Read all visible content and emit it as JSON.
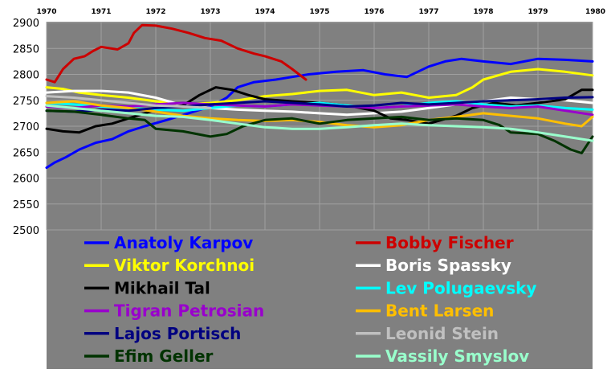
{
  "chart_data": {
    "type": "line",
    "title": "",
    "xlabel": "",
    "ylabel": "",
    "x_ticks": [
      "1970",
      "1971",
      "1972",
      "1973",
      "1974",
      "1975",
      "1976",
      "1977",
      "1978",
      "1979",
      "1980"
    ],
    "y_ticks": [
      "2900",
      "2850",
      "2800",
      "2750",
      "2700",
      "2650",
      "2600",
      "2550",
      "2500"
    ],
    "xlim": [
      1970,
      1980
    ],
    "ylim": [
      2500,
      2900
    ],
    "grid": true,
    "legend_position": "bottom",
    "colors": {
      "background": "#808080",
      "grid": "#a0a0a0"
    },
    "series": [
      {
        "name": "Anatoly Karpov",
        "color": "#0000ff",
        "label_color": "#0000ff",
        "points": [
          [
            1970.0,
            2620
          ],
          [
            1970.15,
            2630
          ],
          [
            1970.35,
            2640
          ],
          [
            1970.6,
            2655
          ],
          [
            1970.9,
            2668
          ],
          [
            1971.2,
            2675
          ],
          [
            1971.5,
            2690
          ],
          [
            1971.8,
            2700
          ],
          [
            1972.2,
            2712
          ],
          [
            1972.6,
            2725
          ],
          [
            1973.0,
            2738
          ],
          [
            1973.3,
            2755
          ],
          [
            1973.5,
            2775
          ],
          [
            1973.8,
            2785
          ],
          [
            1974.2,
            2790
          ],
          [
            1974.5,
            2795
          ],
          [
            1974.8,
            2800
          ],
          [
            1975.3,
            2805
          ],
          [
            1975.8,
            2808
          ],
          [
            1976.2,
            2800
          ],
          [
            1976.6,
            2795
          ],
          [
            1977.0,
            2815
          ],
          [
            1977.3,
            2825
          ],
          [
            1977.6,
            2830
          ],
          [
            1978.0,
            2825
          ],
          [
            1978.5,
            2820
          ],
          [
            1979.0,
            2830
          ],
          [
            1979.5,
            2828
          ],
          [
            1980.0,
            2825
          ]
        ]
      },
      {
        "name": "Bobby Fischer",
        "color": "#cc0000",
        "label_color": "#cc0000",
        "points": [
          [
            1970.0,
            2790
          ],
          [
            1970.15,
            2785
          ],
          [
            1970.3,
            2810
          ],
          [
            1970.5,
            2830
          ],
          [
            1970.7,
            2835
          ],
          [
            1970.85,
            2845
          ],
          [
            1971.0,
            2853
          ],
          [
            1971.3,
            2848
          ],
          [
            1971.5,
            2860
          ],
          [
            1971.6,
            2880
          ],
          [
            1971.75,
            2895
          ],
          [
            1972.0,
            2894
          ],
          [
            1972.3,
            2888
          ],
          [
            1972.6,
            2880
          ],
          [
            1972.9,
            2870
          ],
          [
            1973.2,
            2865
          ],
          [
            1973.5,
            2850
          ],
          [
            1973.8,
            2840
          ],
          [
            1974.0,
            2835
          ],
          [
            1974.3,
            2825
          ],
          [
            1974.5,
            2810
          ],
          [
            1974.75,
            2790
          ]
        ]
      },
      {
        "name": "Viktor Korchnoi",
        "color": "#ffff00",
        "label_color": "#ffff00",
        "points": [
          [
            1970.0,
            2775
          ],
          [
            1970.3,
            2772
          ],
          [
            1970.6,
            2765
          ],
          [
            1971.0,
            2760
          ],
          [
            1971.5,
            2755
          ],
          [
            1972.0,
            2748
          ],
          [
            1972.5,
            2742
          ],
          [
            1973.0,
            2745
          ],
          [
            1973.5,
            2750
          ],
          [
            1974.0,
            2758
          ],
          [
            1974.5,
            2762
          ],
          [
            1975.0,
            2768
          ],
          [
            1975.5,
            2770
          ],
          [
            1976.0,
            2760
          ],
          [
            1976.5,
            2765
          ],
          [
            1977.0,
            2755
          ],
          [
            1977.5,
            2760
          ],
          [
            1977.8,
            2775
          ],
          [
            1978.0,
            2790
          ],
          [
            1978.5,
            2805
          ],
          [
            1979.0,
            2810
          ],
          [
            1979.5,
            2805
          ],
          [
            1980.0,
            2798
          ]
        ]
      },
      {
        "name": "Boris Spassky",
        "color": "#ffffff",
        "label_color": "#ffffff",
        "points": [
          [
            1970.0,
            2765
          ],
          [
            1970.5,
            2768
          ],
          [
            1971.0,
            2768
          ],
          [
            1971.5,
            2765
          ],
          [
            1972.0,
            2755
          ],
          [
            1972.5,
            2740
          ],
          [
            1973.0,
            2735
          ],
          [
            1973.5,
            2732
          ],
          [
            1974.0,
            2730
          ],
          [
            1974.5,
            2728
          ],
          [
            1975.0,
            2725
          ],
          [
            1975.5,
            2722
          ],
          [
            1976.0,
            2725
          ],
          [
            1976.5,
            2728
          ],
          [
            1977.0,
            2735
          ],
          [
            1977.5,
            2742
          ],
          [
            1978.0,
            2748
          ],
          [
            1978.5,
            2755
          ],
          [
            1979.0,
            2752
          ],
          [
            1979.5,
            2750
          ],
          [
            1980.0,
            2745
          ]
        ]
      },
      {
        "name": "Mikhail Tal",
        "color": "#000000",
        "label_color": "#000000",
        "points": [
          [
            1970.0,
            2695
          ],
          [
            1970.3,
            2690
          ],
          [
            1970.6,
            2688
          ],
          [
            1970.9,
            2700
          ],
          [
            1971.2,
            2705
          ],
          [
            1971.5,
            2715
          ],
          [
            1971.8,
            2725
          ],
          [
            1972.1,
            2735
          ],
          [
            1972.5,
            2740
          ],
          [
            1972.8,
            2760
          ],
          [
            1973.1,
            2775
          ],
          [
            1973.4,
            2770
          ],
          [
            1973.7,
            2760
          ],
          [
            1974.0,
            2752
          ],
          [
            1974.5,
            2748
          ],
          [
            1975.0,
            2745
          ],
          [
            1975.5,
            2740
          ],
          [
            1976.0,
            2730
          ],
          [
            1976.3,
            2715
          ],
          [
            1976.6,
            2712
          ],
          [
            1977.0,
            2705
          ],
          [
            1977.5,
            2720
          ],
          [
            1977.8,
            2735
          ],
          [
            1978.2,
            2745
          ],
          [
            1978.6,
            2740
          ],
          [
            1979.0,
            2745
          ],
          [
            1979.5,
            2752
          ],
          [
            1979.8,
            2770
          ],
          [
            1980.0,
            2770
          ]
        ]
      },
      {
        "name": "Lev Polugaevsky",
        "color": "#00ffff",
        "label_color": "#00ffff",
        "points": [
          [
            1970.0,
            2745
          ],
          [
            1970.5,
            2742
          ],
          [
            1971.0,
            2738
          ],
          [
            1971.5,
            2735
          ],
          [
            1972.0,
            2732
          ],
          [
            1972.5,
            2730
          ],
          [
            1973.0,
            2735
          ],
          [
            1973.5,
            2740
          ],
          [
            1974.0,
            2738
          ],
          [
            1974.5,
            2742
          ],
          [
            1975.0,
            2745
          ],
          [
            1975.5,
            2740
          ],
          [
            1976.0,
            2735
          ],
          [
            1976.5,
            2738
          ],
          [
            1977.0,
            2745
          ],
          [
            1977.5,
            2748
          ],
          [
            1978.0,
            2742
          ],
          [
            1978.5,
            2738
          ],
          [
            1979.0,
            2740
          ],
          [
            1979.5,
            2735
          ],
          [
            1980.0,
            2732
          ]
        ]
      },
      {
        "name": "Tigran Petrosian",
        "color": "#9900cc",
        "label_color": "#9900cc",
        "points": [
          [
            1970.0,
            2738
          ],
          [
            1970.5,
            2735
          ],
          [
            1971.0,
            2740
          ],
          [
            1971.5,
            2738
          ],
          [
            1972.0,
            2742
          ],
          [
            1972.5,
            2745
          ],
          [
            1973.0,
            2742
          ],
          [
            1973.5,
            2740
          ],
          [
            1974.0,
            2738
          ],
          [
            1974.5,
            2742
          ],
          [
            1975.0,
            2740
          ],
          [
            1975.5,
            2738
          ],
          [
            1976.0,
            2735
          ],
          [
            1976.5,
            2738
          ],
          [
            1977.0,
            2740
          ],
          [
            1977.5,
            2742
          ],
          [
            1978.0,
            2738
          ],
          [
            1978.5,
            2735
          ],
          [
            1979.0,
            2738
          ],
          [
            1979.5,
            2730
          ],
          [
            1980.0,
            2722
          ]
        ]
      },
      {
        "name": "Bent Larsen",
        "color": "#ffbf00",
        "label_color": "#ffbf00",
        "points": [
          [
            1970.0,
            2745
          ],
          [
            1970.5,
            2748
          ],
          [
            1971.0,
            2740
          ],
          [
            1971.5,
            2735
          ],
          [
            1972.0,
            2728
          ],
          [
            1972.5,
            2720
          ],
          [
            1973.0,
            2715
          ],
          [
            1973.5,
            2712
          ],
          [
            1974.0,
            2710
          ],
          [
            1974.5,
            2712
          ],
          [
            1975.0,
            2708
          ],
          [
            1975.5,
            2702
          ],
          [
            1976.0,
            2698
          ],
          [
            1976.5,
            2702
          ],
          [
            1977.0,
            2712
          ],
          [
            1977.5,
            2718
          ],
          [
            1978.0,
            2725
          ],
          [
            1978.5,
            2720
          ],
          [
            1979.0,
            2715
          ],
          [
            1979.5,
            2705
          ],
          [
            1979.8,
            2700
          ],
          [
            1980.0,
            2718
          ]
        ]
      },
      {
        "name": "Lajos Portisch",
        "color": "#000080",
        "label_color": "#000080",
        "points": [
          [
            1970.0,
            2730
          ],
          [
            1970.5,
            2728
          ],
          [
            1971.0,
            2732
          ],
          [
            1971.5,
            2730
          ],
          [
            1972.0,
            2735
          ],
          [
            1972.5,
            2738
          ],
          [
            1973.0,
            2742
          ],
          [
            1973.5,
            2745
          ],
          [
            1974.0,
            2748
          ],
          [
            1974.5,
            2745
          ],
          [
            1975.0,
            2742
          ],
          [
            1975.5,
            2738
          ],
          [
            1976.0,
            2740
          ],
          [
            1976.5,
            2745
          ],
          [
            1977.0,
            2742
          ],
          [
            1977.5,
            2745
          ],
          [
            1978.0,
            2748
          ],
          [
            1978.5,
            2750
          ],
          [
            1979.0,
            2752
          ],
          [
            1979.5,
            2755
          ],
          [
            1980.0,
            2756
          ]
        ]
      },
      {
        "name": "Leonid Stein",
        "color": "#c0c0c0",
        "label_color": "#c0c0c0",
        "points": [
          [
            1970.0,
            2758
          ],
          [
            1970.5,
            2755
          ],
          [
            1971.0,
            2750
          ],
          [
            1971.5,
            2745
          ],
          [
            1972.0,
            2740
          ],
          [
            1972.5,
            2738
          ],
          [
            1973.0,
            2735
          ]
        ]
      },
      {
        "name": "Efim Geller",
        "color": "#003300",
        "label_color": "#003300",
        "points": [
          [
            1970.0,
            2730
          ],
          [
            1970.5,
            2728
          ],
          [
            1971.0,
            2722
          ],
          [
            1971.5,
            2715
          ],
          [
            1971.8,
            2712
          ],
          [
            1972.0,
            2695
          ],
          [
            1972.5,
            2690
          ],
          [
            1973.0,
            2680
          ],
          [
            1973.3,
            2685
          ],
          [
            1973.6,
            2700
          ],
          [
            1974.0,
            2712
          ],
          [
            1974.5,
            2715
          ],
          [
            1975.0,
            2705
          ],
          [
            1975.5,
            2712
          ],
          [
            1976.0,
            2715
          ],
          [
            1976.5,
            2718
          ],
          [
            1977.0,
            2712
          ],
          [
            1977.5,
            2715
          ],
          [
            1978.0,
            2712
          ],
          [
            1978.3,
            2702
          ],
          [
            1978.5,
            2688
          ],
          [
            1979.0,
            2685
          ],
          [
            1979.3,
            2672
          ],
          [
            1979.6,
            2655
          ],
          [
            1979.8,
            2648
          ],
          [
            1980.0,
            2680
          ]
        ]
      },
      {
        "name": "Vassily Smyslov",
        "color": "#99ffcc",
        "label_color": "#99ffcc",
        "points": [
          [
            1970.0,
            2740
          ],
          [
            1970.5,
            2735
          ],
          [
            1971.0,
            2730
          ],
          [
            1971.5,
            2725
          ],
          [
            1972.0,
            2720
          ],
          [
            1972.5,
            2718
          ],
          [
            1973.0,
            2712
          ],
          [
            1973.5,
            2705
          ],
          [
            1974.0,
            2698
          ],
          [
            1974.5,
            2695
          ],
          [
            1975.0,
            2695
          ],
          [
            1975.5,
            2698
          ],
          [
            1976.0,
            2702
          ],
          [
            1976.5,
            2705
          ],
          [
            1977.0,
            2702
          ],
          [
            1977.5,
            2700
          ],
          [
            1978.0,
            2698
          ],
          [
            1978.5,
            2695
          ],
          [
            1979.0,
            2688
          ],
          [
            1979.5,
            2680
          ],
          [
            1980.0,
            2672
          ]
        ]
      }
    ]
  }
}
